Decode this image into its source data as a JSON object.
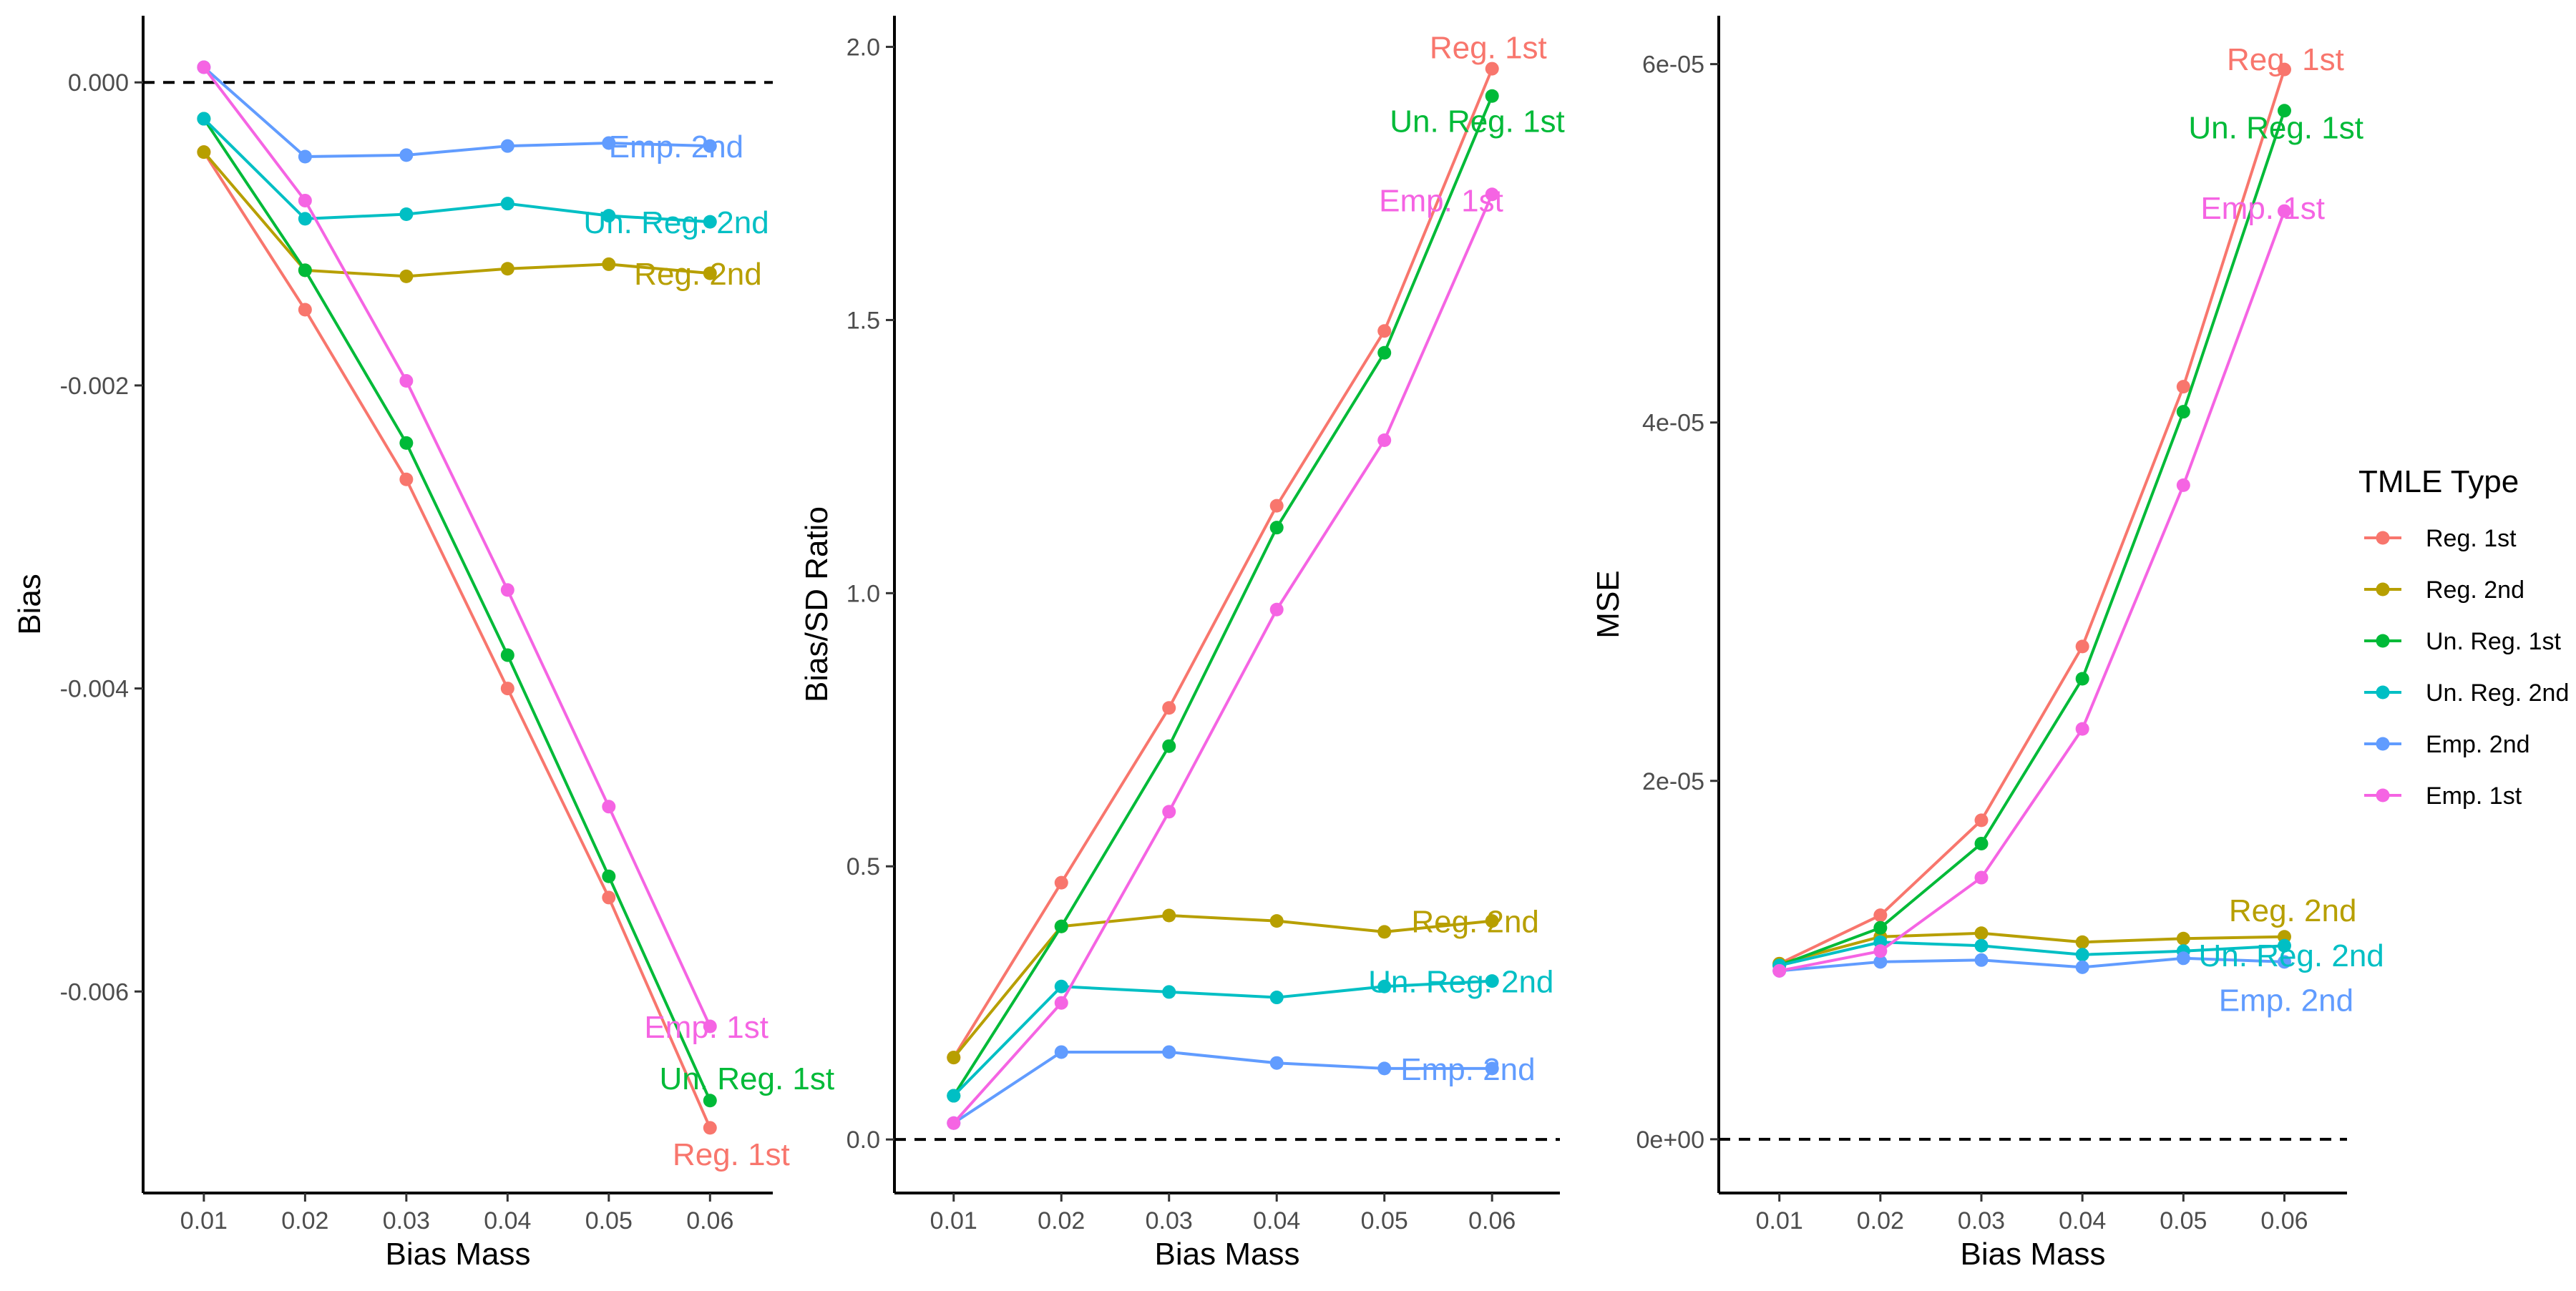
{
  "colors": {
    "Reg. 1st": "#F8766D",
    "Reg. 2nd": "#B79F00",
    "Un. Reg. 1st": "#00BA38",
    "Un. Reg. 2nd": "#00BFC4",
    "Emp. 2nd": "#619CFF",
    "Emp. 1st": "#F564E3"
  },
  "legend": {
    "title": "TMLE Type",
    "entries": [
      "Reg. 1st",
      "Reg. 2nd",
      "Un. Reg. 1st",
      "Un. Reg. 2nd",
      "Emp. 2nd",
      "Emp. 1st"
    ]
  },
  "chart_data": [
    {
      "type": "line",
      "title": "",
      "xlabel": "Bias Mass",
      "ylabel": "Bias",
      "x": [
        0.01,
        0.02,
        0.03,
        0.04,
        0.05,
        0.06
      ],
      "x_tick_labels": [
        "0.01",
        "0.02",
        "0.03",
        "0.04",
        "0.05",
        "0.06"
      ],
      "xlim": [
        0.004,
        0.0662
      ],
      "ylim": [
        -0.00733,
        0.00044
      ],
      "y_ticks": [
        0.0,
        -0.002,
        -0.004,
        -0.006
      ],
      "y_tick_labels": [
        "0.000",
        "-0.002",
        "-0.004",
        "-0.006"
      ],
      "reference_line": 0,
      "grid": false,
      "series": [
        {
          "name": "Reg. 1st",
          "values": [
            -0.00046,
            -0.0015,
            -0.00262,
            -0.004,
            -0.00538,
            -0.0069
          ]
        },
        {
          "name": "Reg. 2nd",
          "values": [
            -0.00046,
            -0.00124,
            -0.00128,
            -0.00123,
            -0.0012,
            -0.00126
          ]
        },
        {
          "name": "Un. Reg. 1st",
          "values": [
            -0.00024,
            -0.00124,
            -0.00238,
            -0.00378,
            -0.00524,
            -0.00672
          ]
        },
        {
          "name": "Un. Reg. 2nd",
          "values": [
            -0.00024,
            -0.0009,
            -0.00087,
            -0.0008,
            -0.00088,
            -0.00092
          ]
        },
        {
          "name": "Emp. 2nd",
          "values": [
            0.0001,
            -0.00049,
            -0.00048,
            -0.00042,
            -0.0004,
            -0.00042
          ]
        },
        {
          "name": "Emp. 1st",
          "values": [
            0.0001,
            -0.00078,
            -0.00197,
            -0.00335,
            -0.00478,
            -0.00623
          ]
        }
      ],
      "annotations": [
        {
          "text": "Emp. 2nd",
          "series": "Emp. 2nd",
          "x": 0.05,
          "y": -0.00042
        },
        {
          "text": "Un. Reg. 2nd",
          "series": "Un. Reg. 2nd",
          "x": 0.0475,
          "y": -0.00092
        },
        {
          "text": "Reg. 2nd",
          "series": "Reg. 2nd",
          "x": 0.0525,
          "y": -0.00126
        },
        {
          "text": "Emp. 1st",
          "series": "Emp. 1st",
          "x": 0.0535,
          "y": -0.00623
        },
        {
          "text": "Un. Reg. 1st",
          "series": "Un. Reg. 1st",
          "x": 0.055,
          "y": -0.00657
        },
        {
          "text": "Reg. 1st",
          "series": "Reg. 1st",
          "x": 0.0563,
          "y": -0.00707
        }
      ]
    },
    {
      "type": "line",
      "title": "",
      "xlabel": "Bias Mass",
      "ylabel": "Bias/SD Ratio",
      "x": [
        0.01,
        0.02,
        0.03,
        0.04,
        0.05,
        0.06
      ],
      "x_tick_labels": [
        "0.01",
        "0.02",
        "0.03",
        "0.04",
        "0.05",
        "0.06"
      ],
      "xlim": [
        0.0045,
        0.0663
      ],
      "ylim": [
        -0.098,
        2.057
      ],
      "y_ticks": [
        0.0,
        0.5,
        1.0,
        1.5,
        2.0
      ],
      "y_tick_labels": [
        "0.0",
        "0.5",
        "1.0",
        "1.5",
        "2.0"
      ],
      "reference_line": 0,
      "grid": false,
      "series": [
        {
          "name": "Reg. 1st",
          "values": [
            0.15,
            0.47,
            0.79,
            1.16,
            1.48,
            1.96
          ]
        },
        {
          "name": "Reg. 2nd",
          "values": [
            0.15,
            0.39,
            0.41,
            0.4,
            0.38,
            0.4
          ]
        },
        {
          "name": "Un. Reg. 1st",
          "values": [
            0.08,
            0.39,
            0.72,
            1.12,
            1.44,
            1.91
          ]
        },
        {
          "name": "Un. Reg. 2nd",
          "values": [
            0.08,
            0.28,
            0.27,
            0.26,
            0.28,
            0.29
          ]
        },
        {
          "name": "Emp. 2nd",
          "values": [
            0.03,
            0.16,
            0.16,
            0.14,
            0.13,
            0.13
          ]
        },
        {
          "name": "Emp. 1st",
          "values": [
            0.03,
            0.25,
            0.6,
            0.97,
            1.28,
            1.73
          ]
        }
      ],
      "annotations": [
        {
          "text": "Reg. 1st",
          "series": "Reg. 1st",
          "x": 0.0542,
          "y": 2.0
        },
        {
          "text": "Un. Reg. 1st",
          "series": "Un. Reg. 1st",
          "x": 0.0505,
          "y": 1.865
        },
        {
          "text": "Emp. 1st",
          "series": "Emp. 1st",
          "x": 0.0495,
          "y": 1.72
        },
        {
          "text": "Reg. 2nd",
          "series": "Reg. 2nd",
          "x": 0.0525,
          "y": 0.4
        },
        {
          "text": "Un. Reg. 2nd",
          "series": "Un. Reg. 2nd",
          "x": 0.0485,
          "y": 0.29
        },
        {
          "text": "Emp. 2nd",
          "series": "Emp. 2nd",
          "x": 0.0515,
          "y": 0.13
        }
      ]
    },
    {
      "type": "line",
      "title": "",
      "xlabel": "Bias Mass",
      "ylabel": "MSE",
      "x": [
        0.01,
        0.02,
        0.03,
        0.04,
        0.05,
        0.06
      ],
      "x_tick_labels": [
        "0.01",
        "0.02",
        "0.03",
        "0.04",
        "0.05",
        "0.06"
      ],
      "xlim": [
        0.004,
        0.0662
      ],
      "ylim": [
        -3e-06,
        6.27e-05
      ],
      "y_ticks": [
        0.0,
        2e-05,
        4e-05,
        6e-05
      ],
      "y_tick_labels": [
        "0e+00",
        "2e-05",
        "4e-05",
        "6e-05"
      ],
      "reference_line": 0,
      "grid": false,
      "series": [
        {
          "name": "Reg. 1st",
          "values": [
            9.8e-06,
            1.25e-05,
            1.78e-05,
            2.75e-05,
            4.2e-05,
            5.97e-05
          ]
        },
        {
          "name": "Reg. 2nd",
          "values": [
            9.8e-06,
            1.13e-05,
            1.15e-05,
            1.1e-05,
            1.12e-05,
            1.13e-05
          ]
        },
        {
          "name": "Un. Reg. 1st",
          "values": [
            9.7e-06,
            1.18e-05,
            1.65e-05,
            2.57e-05,
            4.06e-05,
            5.74e-05
          ]
        },
        {
          "name": "Un. Reg. 2nd",
          "values": [
            9.7e-06,
            1.1e-05,
            1.08e-05,
            1.03e-05,
            1.05e-05,
            1.08e-05
          ]
        },
        {
          "name": "Emp. 2nd",
          "values": [
            9.4e-06,
            9.9e-06,
            1e-05,
            9.6e-06,
            1.01e-05,
            9.9e-06
          ]
        },
        {
          "name": "Emp. 1st",
          "values": [
            9.4e-06,
            1.05e-05,
            1.46e-05,
            2.29e-05,
            3.65e-05,
            5.18e-05
          ]
        }
      ],
      "annotations": [
        {
          "text": "Reg. 1st",
          "series": "Reg. 1st",
          "x": 0.0543,
          "y": 6.03e-05
        },
        {
          "text": "Un. Reg. 1st",
          "series": "Un. Reg. 1st",
          "x": 0.0505,
          "y": 5.65e-05
        },
        {
          "text": "Emp. 1st",
          "series": "Emp. 1st",
          "x": 0.0517,
          "y": 5.2e-05
        },
        {
          "text": "Reg. 2nd",
          "series": "Reg. 2nd",
          "x": 0.0545,
          "y": 1.28e-05
        },
        {
          "text": "Un. Reg. 2nd",
          "series": "Un. Reg. 2nd",
          "x": 0.0515,
          "y": 1.03e-05
        },
        {
          "text": "Emp. 2nd",
          "series": "Emp. 2nd",
          "x": 0.0535,
          "y": 7.8e-06
        }
      ]
    }
  ]
}
